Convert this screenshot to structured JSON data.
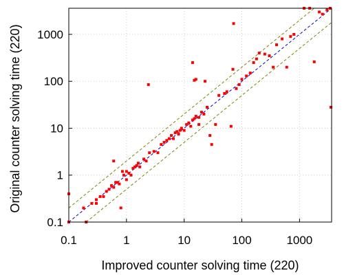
{
  "chart_data": {
    "type": "scatter",
    "xlabel": "Improved counter solving time (220)",
    "ylabel": "Original counter solving time (220)",
    "xscale": "log",
    "yscale": "log",
    "xlim": [
      0.1,
      3600
    ],
    "ylim": [
      0.1,
      3600
    ],
    "x_ticks": [
      0.1,
      1,
      10,
      100,
      1000
    ],
    "x_tick_labels": [
      "0.1",
      "1",
      "10",
      "100",
      "1000"
    ],
    "y_ticks": [
      0.1,
      1,
      10,
      100,
      1000
    ],
    "y_tick_labels": [
      "0.1",
      "1",
      "10",
      "100",
      "1000"
    ],
    "grid": true,
    "reference_lines": [
      {
        "type": "y=x",
        "color": "#0000cc",
        "style": "dashed"
      },
      {
        "type": "y=2x",
        "color": "#808000",
        "style": "dashed"
      },
      {
        "type": "y=x/2",
        "color": "#808000",
        "style": "dashed"
      }
    ],
    "marker_color": "#ff0000",
    "points": [
      [
        0.1,
        0.4
      ],
      [
        0.1,
        0.1
      ],
      [
        0.18,
        0.2
      ],
      [
        0.2,
        0.1
      ],
      [
        0.25,
        0.25
      ],
      [
        0.3,
        0.3
      ],
      [
        0.3,
        0.25
      ],
      [
        0.35,
        0.35
      ],
      [
        0.4,
        0.35
      ],
      [
        0.45,
        0.45
      ],
      [
        0.5,
        0.5
      ],
      [
        0.55,
        0.6
      ],
      [
        0.6,
        0.55
      ],
      [
        0.6,
        2.0
      ],
      [
        0.65,
        0.7
      ],
      [
        0.7,
        0.7
      ],
      [
        0.75,
        0.65
      ],
      [
        0.8,
        0.2
      ],
      [
        0.85,
        1.2
      ],
      [
        0.9,
        1.0
      ],
      [
        1.0,
        0.8
      ],
      [
        1.0,
        1.2
      ],
      [
        1.1,
        1.1
      ],
      [
        1.2,
        1.0
      ],
      [
        1.3,
        1.4
      ],
      [
        1.4,
        1.5
      ],
      [
        1.5,
        1.6
      ],
      [
        1.6,
        1.8
      ],
      [
        1.7,
        1.5
      ],
      [
        2.0,
        2.2
      ],
      [
        2.2,
        2.0
      ],
      [
        2.4,
        85
      ],
      [
        2.5,
        3.0
      ],
      [
        3.0,
        3.2
      ],
      [
        3.5,
        3.0
      ],
      [
        4.0,
        4.5
      ],
      [
        4.5,
        5.0
      ],
      [
        5.0,
        5.5
      ],
      [
        5.5,
        6.0
      ],
      [
        6.0,
        7.0
      ],
      [
        6.5,
        6.0
      ],
      [
        7.0,
        8.0
      ],
      [
        7.5,
        8.5
      ],
      [
        8.0,
        7.5
      ],
      [
        8.5,
        9.0
      ],
      [
        9.0,
        10.0
      ],
      [
        10.0,
        9.0
      ],
      [
        11.0,
        12.0
      ],
      [
        12.0,
        13.0
      ],
      [
        13.0,
        11.0
      ],
      [
        14.0,
        15.0
      ],
      [
        15.0,
        16.0
      ],
      [
        16.0,
        18.0
      ],
      [
        18.0,
        17.0
      ],
      [
        14.0,
        250
      ],
      [
        15.0,
        105
      ],
      [
        16.0,
        110
      ],
      [
        18.0,
        12.0
      ],
      [
        20.0,
        22.0
      ],
      [
        22.0,
        20.0
      ],
      [
        23.0,
        100
      ],
      [
        25.0,
        28.0
      ],
      [
        28.0,
        7.0
      ],
      [
        30.0,
        4.5
      ],
      [
        35.0,
        12.0
      ],
      [
        40.0,
        50.0
      ],
      [
        50.0,
        55.0
      ],
      [
        55.0,
        60.0
      ],
      [
        65.0,
        11.0
      ],
      [
        70.0,
        180
      ],
      [
        72.0,
        1700
      ],
      [
        80.0,
        70.0
      ],
      [
        90.0,
        85.0
      ],
      [
        100.0,
        110.0
      ],
      [
        120.0,
        130.0
      ],
      [
        140.0,
        150.0
      ],
      [
        160.0,
        250.0
      ],
      [
        180.0,
        300.0
      ],
      [
        200.0,
        400.0
      ],
      [
        250.0,
        380.0
      ],
      [
        300.0,
        350.0
      ],
      [
        350.0,
        200.0
      ],
      [
        400.0,
        600.0
      ],
      [
        500.0,
        800.0
      ],
      [
        600.0,
        200.0
      ],
      [
        700.0,
        900.0
      ],
      [
        800.0,
        1000.0
      ],
      [
        1200.0,
        3600.0
      ],
      [
        1800.0,
        260.0
      ],
      [
        2500.0,
        2700.0
      ],
      [
        3000.0,
        3300.0
      ],
      [
        3400.0,
        3600.0
      ],
      [
        3500.0,
        28.0
      ],
      [
        1500.0,
        3600.0
      ],
      [
        2200.0,
        3000.0
      ]
    ]
  }
}
